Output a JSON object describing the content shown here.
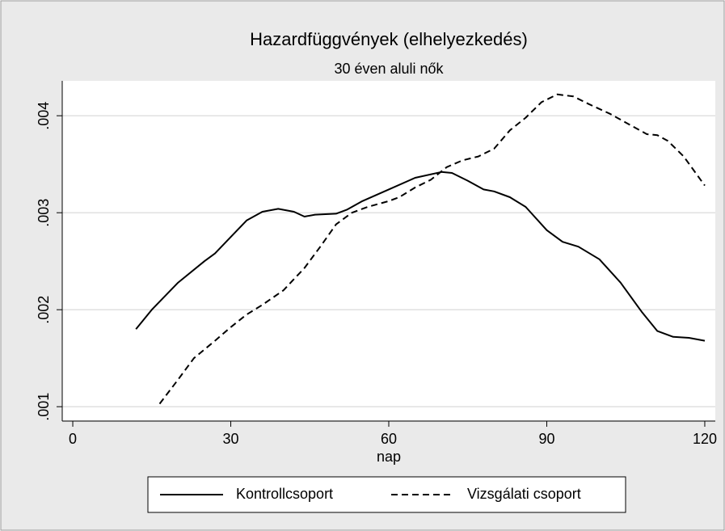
{
  "chart_data": {
    "type": "line",
    "title": "Hazardfüggvények (elhelyezkedés)",
    "subtitle": "30 éven aluli nők",
    "xlabel": "nap",
    "xlim": [
      -2,
      122
    ],
    "xticks": [
      0,
      30,
      60,
      90,
      120
    ],
    "ylim": [
      0.00086,
      0.00436
    ],
    "yticks": [
      {
        "value": 0.001,
        "label": ".001"
      },
      {
        "value": 0.002,
        "label": ".002"
      },
      {
        "value": 0.003,
        "label": ".003"
      },
      {
        "value": 0.004,
        "label": ".004"
      }
    ],
    "grid": true,
    "legend": "bottom",
    "series": [
      {
        "name": "Kontrollcsoport",
        "color": "#000000",
        "dash": "solid",
        "x": [
          12,
          15,
          20,
          25,
          27,
          30,
          33,
          36,
          39,
          42,
          44,
          46,
          50,
          52,
          55,
          60,
          65,
          70,
          72,
          75,
          78,
          80,
          83,
          86,
          90,
          93,
          96,
          100,
          104,
          108,
          111,
          114,
          117,
          120
        ],
        "values": [
          0.0018,
          0.002,
          0.00228,
          0.0025,
          0.00258,
          0.00275,
          0.00292,
          0.00301,
          0.00304,
          0.00301,
          0.00296,
          0.00298,
          0.00299,
          0.00303,
          0.00312,
          0.00324,
          0.00336,
          0.00342,
          0.00341,
          0.00333,
          0.00324,
          0.00322,
          0.00316,
          0.00306,
          0.00282,
          0.0027,
          0.00265,
          0.00252,
          0.00228,
          0.00198,
          0.00178,
          0.00172,
          0.00171,
          0.00168
        ]
      },
      {
        "name": "Vizsgálati csoport",
        "color": "#000000",
        "dash": "dashed",
        "x": [
          16.5,
          20,
          23,
          27,
          30,
          33,
          36,
          40,
          44,
          47,
          50,
          53,
          56,
          60,
          62,
          65,
          68,
          71,
          74,
          77,
          80,
          83,
          86,
          89,
          92,
          95,
          98,
          102,
          106,
          109,
          111,
          113,
          116,
          120
        ],
        "values": [
          0.00103,
          0.00128,
          0.0015,
          0.00168,
          0.00182,
          0.00195,
          0.00205,
          0.0022,
          0.00243,
          0.00265,
          0.00288,
          0.003,
          0.00306,
          0.00312,
          0.00316,
          0.00326,
          0.00334,
          0.00347,
          0.00354,
          0.00358,
          0.00366,
          0.00385,
          0.00398,
          0.00414,
          0.00422,
          0.0042,
          0.00412,
          0.00402,
          0.0039,
          0.00381,
          0.0038,
          0.00374,
          0.00358,
          0.00328
        ]
      }
    ]
  }
}
